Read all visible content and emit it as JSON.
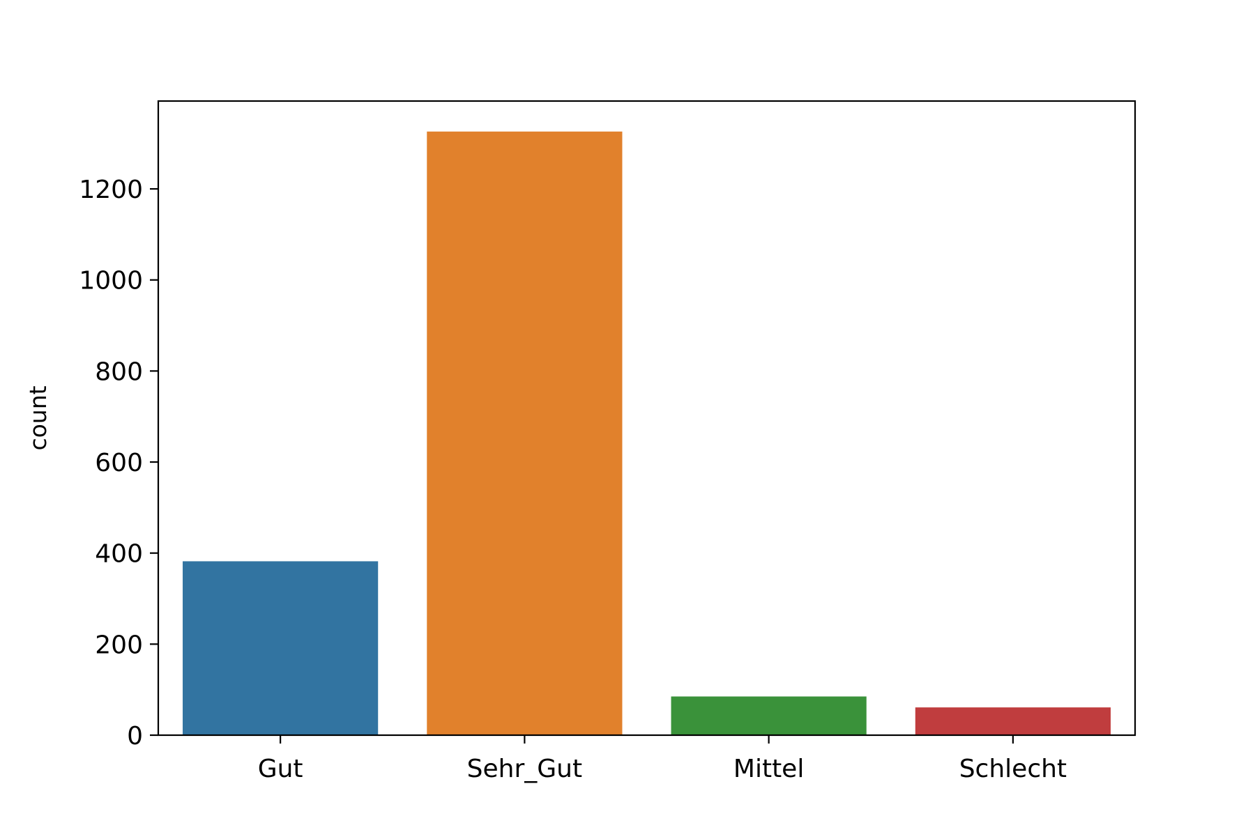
{
  "chart_data": {
    "type": "bar",
    "categories": [
      "Gut",
      "Sehr_Gut",
      "Mittel",
      "Schlecht"
    ],
    "values": [
      382,
      1326,
      85,
      61
    ],
    "colors": [
      "#3274a1",
      "#e1812c",
      "#3a923a",
      "#c03d3e"
    ],
    "title": "",
    "xlabel": "",
    "ylabel": "count",
    "ylim": [
      0,
      1393
    ],
    "yticks": [
      0,
      200,
      400,
      600,
      800,
      1000,
      1200
    ],
    "grid": false,
    "legend": "none"
  }
}
